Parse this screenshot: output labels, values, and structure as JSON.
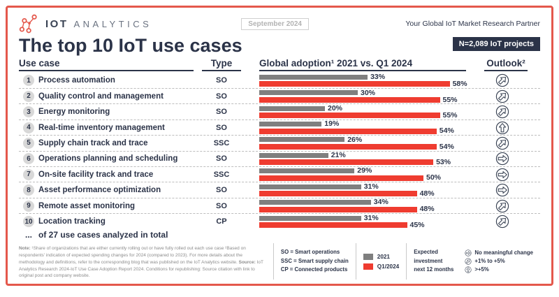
{
  "header": {
    "logo_text_1": "IOT",
    "logo_text_2": "ANALYTICS",
    "date_badge": "September 2024",
    "tagline": "Your Global IoT Market Research Partner",
    "sample_badge": "N=2,089 IoT projects"
  },
  "title": "The top 10 IoT use cases",
  "columns": {
    "use_case": "Use case",
    "type": "Type",
    "adoption": "Global adoption¹ 2021 vs. Q1 2024",
    "outlook": "Outlook²"
  },
  "rows": [
    {
      "num": "1",
      "name": "Process automation",
      "type": "SO",
      "v2021": 33,
      "v2024": 58,
      "pct2021": "33%",
      "pct2024": "58%",
      "outlook": "diag"
    },
    {
      "num": "2",
      "name": "Quality control and management",
      "type": "SO",
      "v2021": 30,
      "v2024": 55,
      "pct2021": "30%",
      "pct2024": "55%",
      "outlook": "diag"
    },
    {
      "num": "3",
      "name": "Energy monitoring",
      "type": "SO",
      "v2021": 20,
      "v2024": 55,
      "pct2021": "20%",
      "pct2024": "55%",
      "outlook": "diag"
    },
    {
      "num": "4",
      "name": "Real-time inventory management",
      "type": "SO",
      "v2021": 19,
      "v2024": 54,
      "pct2021": "19%",
      "pct2024": "54%",
      "outlook": "up"
    },
    {
      "num": "5",
      "name": "Supply chain track and trace",
      "type": "SSC",
      "v2021": 26,
      "v2024": 54,
      "pct2021": "26%",
      "pct2024": "54%",
      "outlook": "diag"
    },
    {
      "num": "6",
      "name": "Operations planning and scheduling",
      "type": "SO",
      "v2021": 21,
      "v2024": 53,
      "pct2021": "21%",
      "pct2024": "53%",
      "outlook": "right"
    },
    {
      "num": "7",
      "name": "On-site facility track and trace",
      "type": "SSC",
      "v2021": 29,
      "v2024": 50,
      "pct2021": "29%",
      "pct2024": "50%",
      "outlook": "right"
    },
    {
      "num": "8",
      "name": "Asset performance optimization",
      "type": "SO",
      "v2021": 31,
      "v2024": 48,
      "pct2021": "31%",
      "pct2024": "48%",
      "outlook": "right"
    },
    {
      "num": "9",
      "name": "Remote asset monitoring",
      "type": "SO",
      "v2021": 34,
      "v2024": 48,
      "pct2021": "34%",
      "pct2024": "48%",
      "outlook": "diag"
    },
    {
      "num": "10",
      "name": "Location tracking",
      "type": "CP",
      "v2021": 31,
      "v2024": 45,
      "pct2021": "31%",
      "pct2024": "45%",
      "outlook": "diag"
    }
  ],
  "ellipsis_row": {
    "num": "...",
    "label": "of 27 use cases analyzed in total"
  },
  "footnote": {
    "note_label": "Note:",
    "note_body": " ¹Share of organizations that are either currently rolling out or have fully rolled out each use case ²Based on respondents' indication of expected spending changes for 2024 (compared to 2023). For more details about the methodology and definitions, refer to the corresponding blog that was published on the IoT Analytics website. ",
    "source_label": "Source:",
    "source_body": " IoT Analytics Research 2024-IoT Use Case Adoption Report 2024. Conditions for republishing: Source citation with link to original post and company website."
  },
  "legend": {
    "abbr_lines": [
      "SO = Smart operations",
      "SSC = Smart supply chain",
      "CP = Connected products"
    ],
    "series": [
      {
        "label": "2021",
        "color": "#7f7f7f"
      },
      {
        "label": "Q1/2024",
        "color": "#ef3c30"
      }
    ],
    "expected_lines": [
      "Expected",
      "investment",
      "next 12 months"
    ],
    "outlook_items": [
      {
        "icon": "right",
        "label": "No meaningful change"
      },
      {
        "icon": "diag",
        "label": "+1% to +5%"
      },
      {
        "icon": "up",
        "label": ">+5%"
      }
    ]
  },
  "colors": {
    "navy": "#2b3348",
    "red": "#ef3c30",
    "coral_border": "#e4584c",
    "gray_bar": "#7f7f7f"
  },
  "chart_data": {
    "type": "bar",
    "orientation": "horizontal",
    "title": "The top 10 IoT use cases",
    "subtitle": "Global adoption¹ 2021 vs. Q1 2024",
    "categories": [
      "Process automation",
      "Quality control and management",
      "Energy monitoring",
      "Real-time inventory management",
      "Supply chain track and trace",
      "Operations planning and scheduling",
      "On-site facility track and trace",
      "Asset performance optimization",
      "Remote asset monitoring",
      "Location tracking"
    ],
    "series": [
      {
        "name": "2021",
        "color": "#7f7f7f",
        "values": [
          33,
          30,
          20,
          19,
          26,
          21,
          29,
          31,
          34,
          31
        ]
      },
      {
        "name": "Q1/2024",
        "color": "#ef3c30",
        "values": [
          58,
          55,
          55,
          54,
          54,
          53,
          50,
          48,
          48,
          45
        ]
      }
    ],
    "unit": "%",
    "xlim": [
      0,
      60
    ],
    "types": [
      "SO",
      "SO",
      "SO",
      "SO",
      "SSC",
      "SO",
      "SSC",
      "SO",
      "SO",
      "CP"
    ],
    "outlook": [
      "+1% to +5%",
      "+1% to +5%",
      "+1% to +5%",
      ">+5%",
      "+1% to +5%",
      "No meaningful change",
      "No meaningful change",
      "No meaningful change",
      "+1% to +5%",
      "+1% to +5%"
    ],
    "sample": "N=2,089 IoT projects"
  }
}
